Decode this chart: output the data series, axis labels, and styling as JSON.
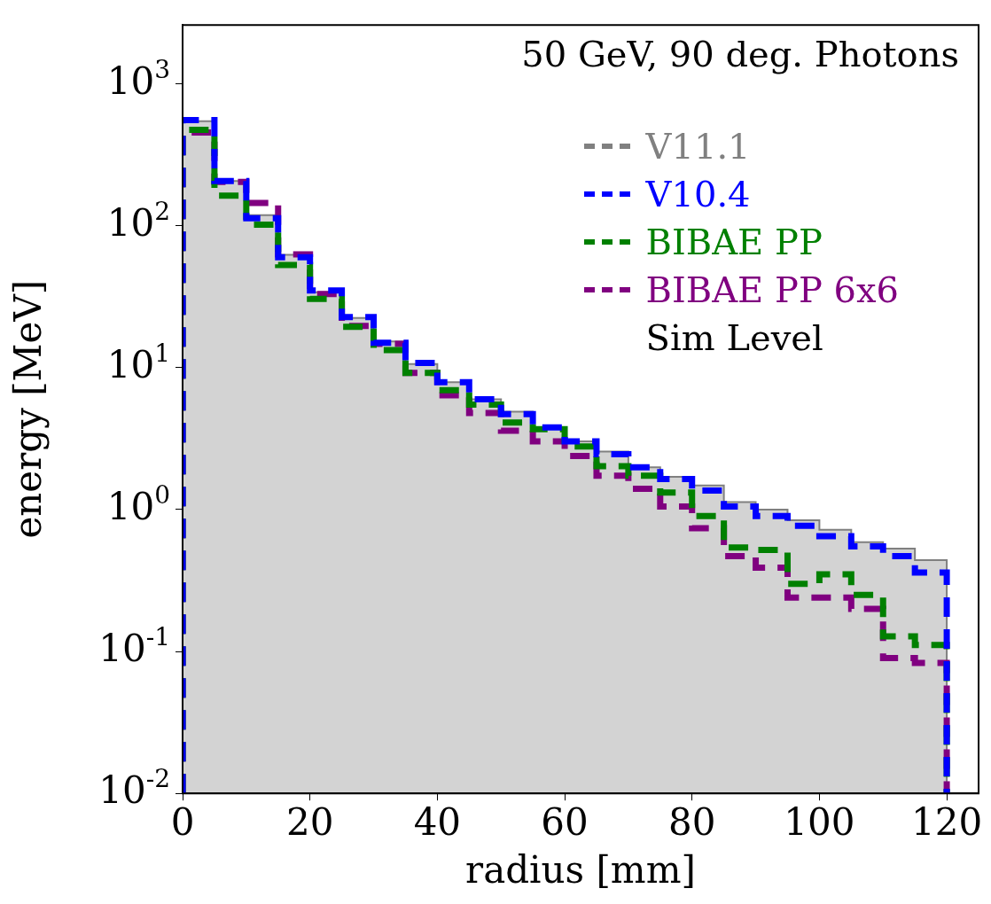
{
  "chart_data": {
    "type": "histogram",
    "title": "50 GeV, 90 deg. Photons",
    "xlabel": "radius [mm]",
    "ylabel": "energy [MeV]",
    "bins": [
      0,
      5,
      10,
      15,
      20,
      25,
      30,
      35,
      40,
      45,
      50,
      55,
      60,
      65,
      70,
      75,
      80,
      85,
      90,
      95,
      100,
      105,
      110,
      115,
      120
    ],
    "series": [
      {
        "name": "V11.1",
        "color": "#808080",
        "values": [
          546,
          207,
          119,
          62.5,
          34,
          22.4,
          15.3,
          10.6,
          7.9,
          6.0,
          4.9,
          3.8,
          3.03,
          2.56,
          1.99,
          1.7,
          1.48,
          1.13,
          1.0,
          0.84,
          0.72,
          0.59,
          0.53,
          0.44
        ]
      },
      {
        "name": "V10.4",
        "color": "#0000ff",
        "line_style": "dashed",
        "values": [
          555,
          207,
          113,
          60,
          35,
          22.7,
          15,
          10.8,
          7.9,
          6.0,
          4.7,
          3.8,
          3.03,
          2.46,
          1.99,
          1.64,
          1.36,
          1.05,
          0.9,
          0.77,
          0.65,
          0.55,
          0.47,
          0.36
        ]
      },
      {
        "name": "BIBAE PP",
        "color": "#008000",
        "line_style": "dashed",
        "values": [
          474,
          163,
          102,
          53,
          30.5,
          19.4,
          13.3,
          9.2,
          6.95,
          5.5,
          4.1,
          3.69,
          2.79,
          2.02,
          1.73,
          1.32,
          0.9,
          0.54,
          0.52,
          0.3,
          0.35,
          0.25,
          0.128,
          0.111
        ]
      },
      {
        "name": "BIBAE PP 6x6",
        "color": "#800080",
        "line_style": "dashed",
        "values": [
          455,
          204,
          145,
          63,
          33,
          19.7,
          14.7,
          9.2,
          6.4,
          4.8,
          3.59,
          3.03,
          2.39,
          1.73,
          1.4,
          1.05,
          0.74,
          0.47,
          0.39,
          0.24,
          0.24,
          0.2,
          0.09,
          0.083
        ]
      }
    ],
    "annotations": [
      "Sim Level"
    ],
    "log": "y",
    "legend": "top right",
    "xlim": [
      0,
      125
    ],
    "xticks": [
      0,
      20,
      40,
      60,
      80,
      100,
      120
    ],
    "ylim": [
      0.01,
      2600
    ],
    "yticks": [
      {
        "value": 0.01,
        "label": "10$^{-2}$"
      },
      {
        "value": 0.1,
        "label": "10$^{-1}$"
      },
      {
        "value": 1,
        "label": "10$^{0}$"
      },
      {
        "value": 10,
        "label": "10$^{1}$"
      },
      {
        "value": 100,
        "label": "10$^{2}$"
      },
      {
        "value": 1000,
        "label": "10$^{3}$"
      }
    ]
  }
}
